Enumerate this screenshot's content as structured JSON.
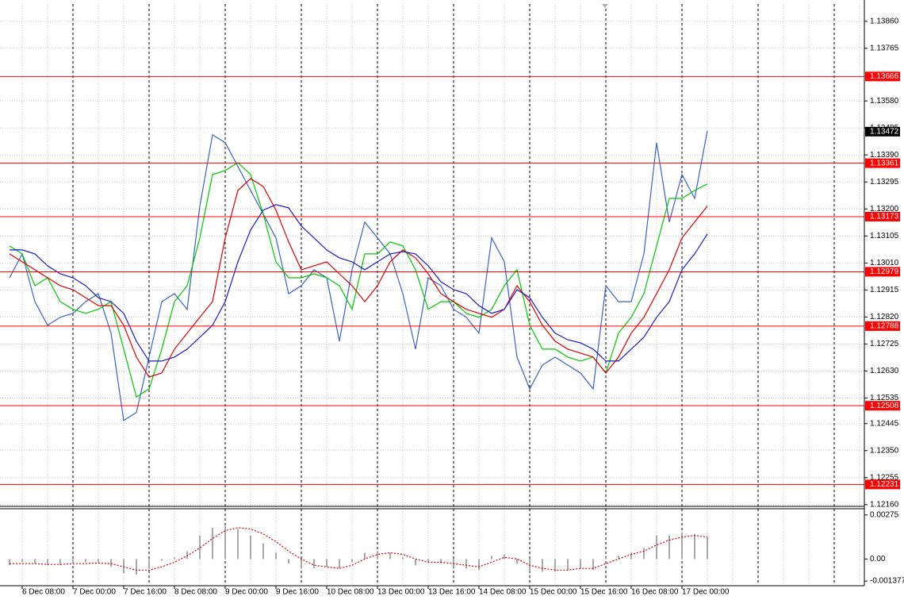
{
  "chart_data": [
    {
      "type": "line",
      "grid": true,
      "categories": [
        null,
        "6 Dec 08:00",
        null,
        null,
        null,
        "7 Dec 00:00",
        null,
        null,
        null,
        "7 Dec 16:00",
        null,
        null,
        null,
        "8 Dec 08:00",
        null,
        null,
        null,
        "9 Dec 00:00",
        null,
        null,
        null,
        "9 Dec 16:00",
        null,
        null,
        null,
        "10 Dec 08:00",
        null,
        null,
        null,
        "13 Dec 00:00",
        null,
        null,
        null,
        "13 Dec 16:00",
        null,
        null,
        null,
        "14 Dec 08:00",
        null,
        null,
        null,
        "15 Dec 00:00",
        null,
        null,
        null,
        "15 Dec 16:00",
        null,
        null,
        null,
        "16 Dec 08:00",
        null,
        null,
        null,
        "17 Dec 00:00",
        null,
        null
      ],
      "ylim": [
        1.12154,
        1.13921
      ],
      "yticks": [
        {
          "value": 1.1386,
          "label": "1.13860"
        },
        1.13765,
        {
          "value": 1.1358,
          "label": "1.13580"
        },
        1.13485,
        {
          "value": 1.1339,
          "label": "1.13390"
        },
        1.13295,
        {
          "value": 1.132,
          "label": "1.13200"
        },
        1.13105,
        {
          "value": 1.1301,
          "label": "1.13010"
        },
        1.12915,
        {
          "value": 1.1282,
          "label": "1.12820"
        },
        1.12725,
        {
          "value": 1.1263,
          "label": "1.12630"
        },
        1.12535,
        1.12445,
        {
          "value": 1.1235,
          "label": "1.12350"
        },
        1.12255,
        {
          "value": 1.1216,
          "label": "1.12160"
        }
      ],
      "series": [
        {
          "color": "#3a62c4",
          "values": [
            1.12958,
            1.13042,
            1.12874,
            1.12791,
            1.12819,
            1.12833,
            1.12874,
            1.12902,
            1.12763,
            1.12456,
            1.12484,
            1.12679,
            1.12874,
            1.12902,
            1.12847,
            1.1321,
            1.13461,
            1.13433,
            1.13349,
            1.13265,
            1.13182,
            1.13098,
            1.12902,
            1.1293,
            1.12986,
            1.12958,
            1.12735,
            1.12986,
            1.13154,
            1.13098,
            1.13042,
            1.12902,
            1.12707,
            1.12958,
            1.1293,
            1.12847,
            1.12819,
            1.12763,
            1.13098,
            1.13014,
            1.12679,
            1.12567,
            1.12651,
            1.12679,
            1.12651,
            1.12623,
            1.12567,
            1.1293,
            1.12874,
            1.12874,
            1.13042,
            1.13433,
            1.13154,
            1.13321,
            1.13237,
            1.13475
          ]
        },
        {
          "color": "#00c800",
          "values": [
            1.1307,
            1.13042,
            1.1293,
            1.12958,
            1.12874,
            1.12847,
            1.12833,
            1.12847,
            1.12874,
            1.12707,
            1.12539,
            1.12567,
            1.12707,
            1.12874,
            1.1293,
            1.13098,
            1.13321,
            1.13335,
            1.13363,
            1.13321,
            1.13182,
            1.13014,
            1.12958,
            1.12958,
            1.12972,
            1.12958,
            1.1293,
            1.12847,
            1.13042,
            1.13042,
            1.13084,
            1.1307,
            1.12986,
            1.12847,
            1.12874,
            1.12874,
            1.12833,
            1.12819,
            1.12847,
            1.1293,
            1.12986,
            1.12791,
            1.12707,
            1.12707,
            1.12679,
            1.12665,
            1.12679,
            1.12623,
            1.12763,
            1.12819,
            1.12902,
            1.1307,
            1.13237,
            1.13237,
            1.13265,
            1.13288
          ]
        },
        {
          "color": "#dd0000",
          "values": [
            1.13042,
            1.13014,
            1.12986,
            1.12958,
            1.1293,
            1.12916,
            1.12888,
            1.1286,
            1.1286,
            1.12791,
            1.12679,
            1.12609,
            1.12623,
            1.12707,
            1.12763,
            1.12819,
            1.12874,
            1.13098,
            1.13265,
            1.13307,
            1.13279,
            1.13196,
            1.13084,
            1.12986,
            1.13,
            1.13014,
            1.12972,
            1.1293,
            1.12874,
            1.1293,
            1.13014,
            1.13056,
            1.13028,
            1.12972,
            1.12902,
            1.12874,
            1.12847,
            1.12833,
            1.12819,
            1.12847,
            1.1293,
            1.12874,
            1.12791,
            1.12735,
            1.12707,
            1.12693,
            1.12679,
            1.12623,
            1.12679,
            1.12763,
            1.12819,
            1.12902,
            1.12986,
            1.13098,
            1.13154,
            1.1321
          ]
        },
        {
          "color": "#1a1ac8",
          "values": [
            1.13056,
            1.13056,
            1.13042,
            1.13,
            1.12972,
            1.12958,
            1.1293,
            1.12888,
            1.12874,
            1.12833,
            1.12735,
            1.12665,
            1.12665,
            1.12679,
            1.12707,
            1.12749,
            1.12791,
            1.12874,
            1.13014,
            1.13126,
            1.13196,
            1.13215,
            1.13204,
            1.1314,
            1.13098,
            1.13056,
            1.13028,
            1.13014,
            1.12986,
            1.13014,
            1.13042,
            1.1305,
            1.13042,
            1.13,
            1.12944,
            1.12916,
            1.12902,
            1.1286,
            1.12833,
            1.12847,
            1.12916,
            1.12888,
            1.12819,
            1.12763,
            1.1274,
            1.12729,
            1.12707,
            1.12665,
            1.12665,
            1.12707,
            1.12749,
            1.12819,
            1.12874,
            1.12986,
            1.13042,
            1.13112
          ]
        }
      ],
      "levels": [
        1.13666,
        1.13361,
        1.13173,
        1.12979,
        1.12788,
        1.12508,
        1.12231
      ],
      "level_color": "#ff0000",
      "last_price": 1.13472
    },
    {
      "type": "macd",
      "ylim": [
        -0.00157,
        0.00314
      ],
      "yticks": [
        0.00275,
        {
          "value": 0,
          "label": "0.00"
        },
        -0.001377
      ],
      "series": [
        {
          "type": "bar",
          "color": "#a8a8a8",
          "values": [
            -0.00039,
            -0.0002,
            -0.00029,
            -0.00039,
            -0.00039,
            -0.00029,
            -0.0002,
            -0.0002,
            -0.00049,
            -0.00088,
            -0.00098,
            -0.00059,
            -0.0001,
            0.0001,
            0.00049,
            0.00147,
            0.00196,
            0.00206,
            0.00187,
            0.00147,
            0.00098,
            0.00039,
            -0.00029,
            -0.00059,
            -0.00059,
            -0.00049,
            -0.00059,
            -0.0002,
            0.00039,
            0.00049,
            0.00039,
            0.0001,
            -0.00039,
            -0.0002,
            -0.00029,
            -0.00049,
            -0.00059,
            -0.00069,
            0.0002,
            0.00029,
            -0.00029,
            -0.00079,
            -0.00079,
            -0.00079,
            -0.00069,
            -0.00059,
            -0.00069,
            0.0001,
            0.0002,
            0.00039,
            0.00069,
            0.00147,
            0.00147,
            0.00167,
            0.00157,
            0.00137
          ]
        },
        {
          "type": "line",
          "dash": true,
          "color": "#e00000",
          "values": [
            -0.00029,
            -0.00029,
            -0.00029,
            -0.00034,
            -0.00034,
            -0.00029,
            -0.00029,
            -0.00025,
            -0.00029,
            -0.00049,
            -0.00069,
            -0.00069,
            -0.00049,
            -0.0002,
            0.0002,
            0.00069,
            0.00128,
            0.00177,
            0.00196,
            0.00187,
            0.00157,
            0.00108,
            0.00049,
            0,
            -0.00039,
            -0.00049,
            -0.00059,
            -0.00039,
            0,
            0.00029,
            0.00039,
            0.00029,
            0,
            -0.0002,
            -0.0002,
            -0.00029,
            -0.00039,
            -0.00049,
            -0.0002,
            0.0001,
            0,
            -0.00039,
            -0.00059,
            -0.00069,
            -0.00069,
            -0.00059,
            -0.00059,
            -0.00029,
            0,
            0.00029,
            0.00049,
            0.00088,
            0.00118,
            0.00137,
            0.00147,
            0.00137
          ]
        }
      ]
    }
  ]
}
